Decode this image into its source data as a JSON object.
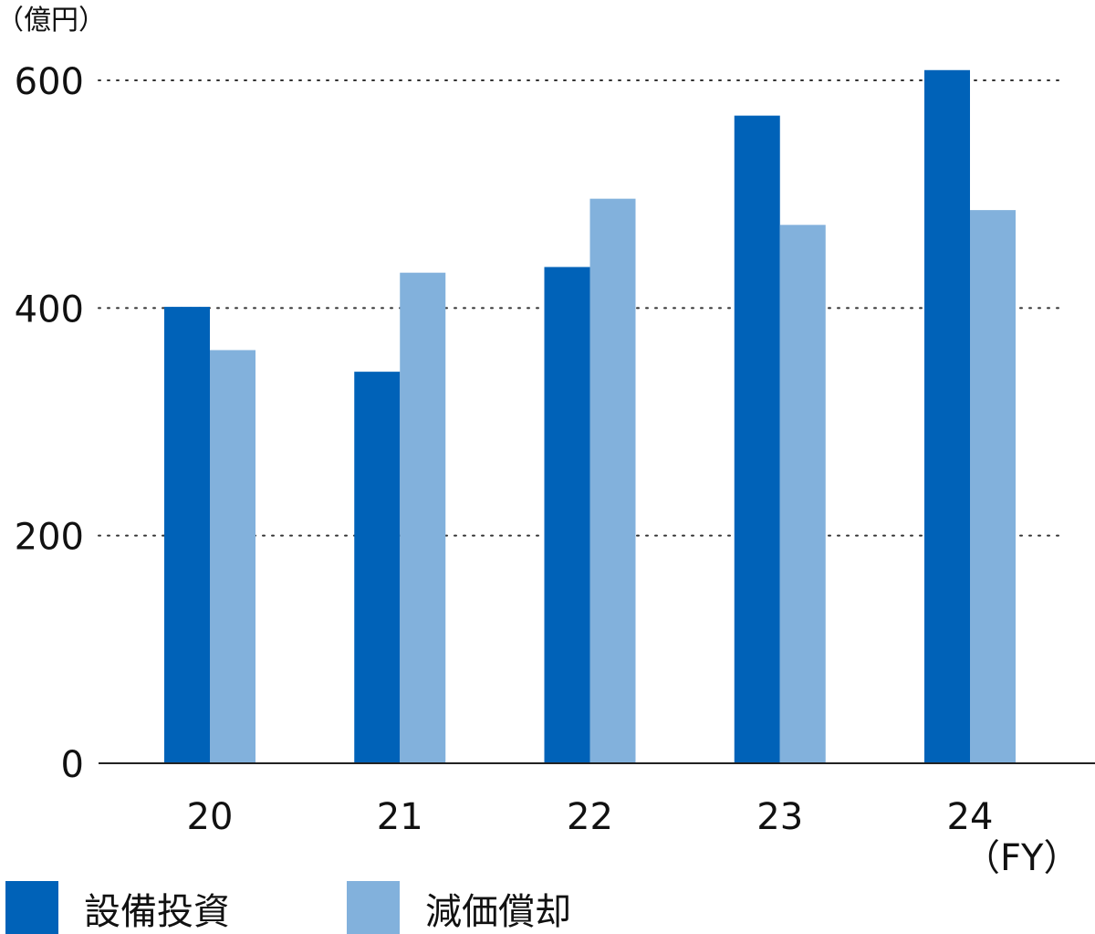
{
  "chart_data": {
    "type": "bar",
    "y_unit": "（億円）",
    "x_unit": "（FY）",
    "categories": [
      "20",
      "21",
      "22",
      "23",
      "24"
    ],
    "series": [
      {
        "name": "設備投資",
        "color": "#0062b8",
        "values": [
          401,
          344,
          436,
          569,
          609
        ]
      },
      {
        "name": "減価償却",
        "color": "#82b1dc",
        "values": [
          363,
          431,
          496,
          473,
          486
        ]
      }
    ],
    "ylim": [
      0,
      600
    ],
    "yticks": [
      0,
      200,
      400,
      600
    ],
    "grid": true,
    "legend_position": "bottom-left"
  }
}
